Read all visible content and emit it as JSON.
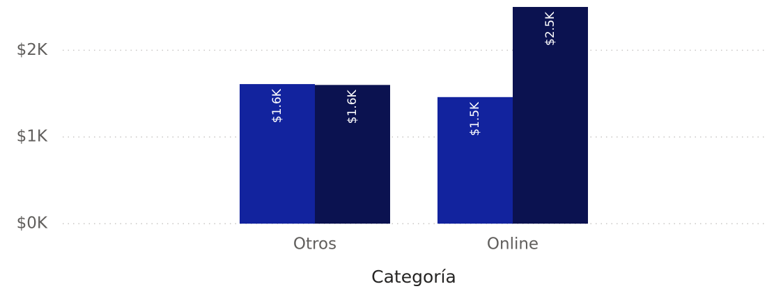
{
  "chart_data": {
    "type": "bar",
    "x_label": "Categoría",
    "categories": [
      "Otros",
      "Online"
    ],
    "series": [
      {
        "color": "#12239e",
        "values": [
          1610,
          1460
        ],
        "value_labels": [
          "$1.6K",
          "$1.5K"
        ]
      },
      {
        "color": "#0b1250",
        "values": [
          1600,
          2500
        ],
        "value_labels": [
          "$1.6K",
          "$2.5K"
        ]
      }
    ],
    "ylim": [
      0,
      2500
    ],
    "yticks": [
      {
        "value": 0,
        "label": "$0K"
      },
      {
        "value": 1000,
        "label": "$1K"
      },
      {
        "value": 2000,
        "label": "$2K"
      }
    ],
    "grid": true
  }
}
